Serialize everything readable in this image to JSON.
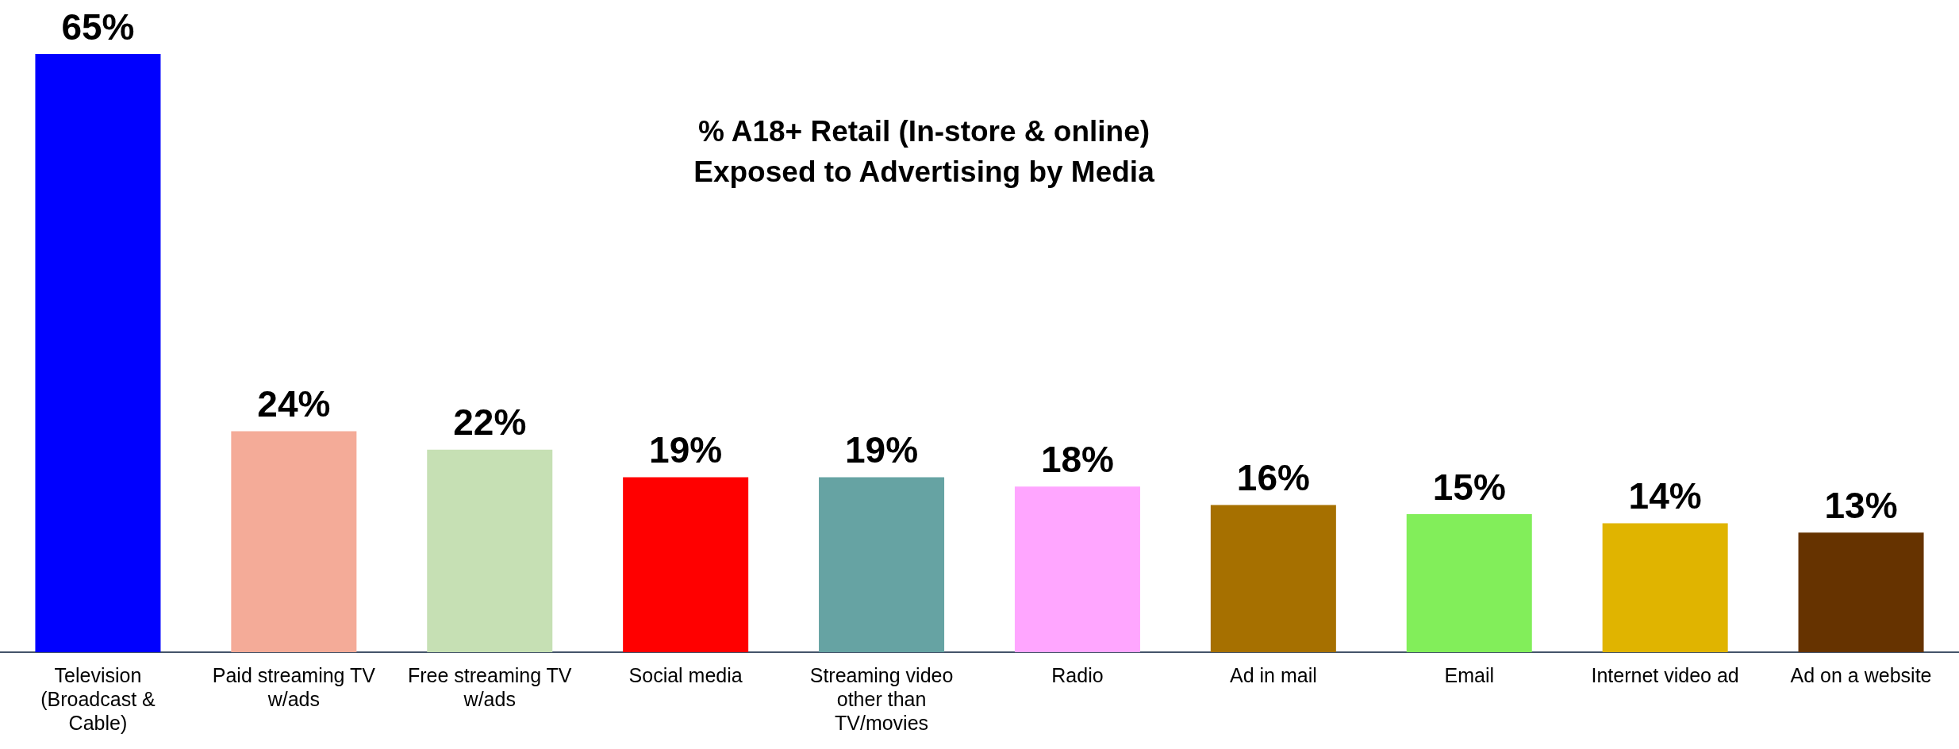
{
  "chart_data": {
    "type": "bar",
    "title": "% A18+ Retail (In-store & online)\nExposed to Advertising by Media",
    "categories": [
      "Television (Broadcast & Cable)",
      "Paid streaming TV w/ads",
      "Free streaming TV w/ads",
      "Social media",
      "Streaming video other than TV/movies",
      "Radio",
      "Ad in mail",
      "Email",
      "Internet video ad",
      "Ad on a website"
    ],
    "values": [
      65,
      24,
      22,
      19,
      19,
      18,
      16,
      15,
      14,
      13
    ],
    "colors": [
      "#0000ff",
      "#f4ab98",
      "#c6e0b4",
      "#ff0000",
      "#66a3a3",
      "#ffa6ff",
      "#a67000",
      "#82ee5a",
      "#e0b400",
      "#663300"
    ],
    "value_labels": [
      "65%",
      "24%",
      "22%",
      "19%",
      "19%",
      "18%",
      "16%",
      "15%",
      "14%",
      "13%"
    ],
    "grid": false,
    "legend": false
  }
}
